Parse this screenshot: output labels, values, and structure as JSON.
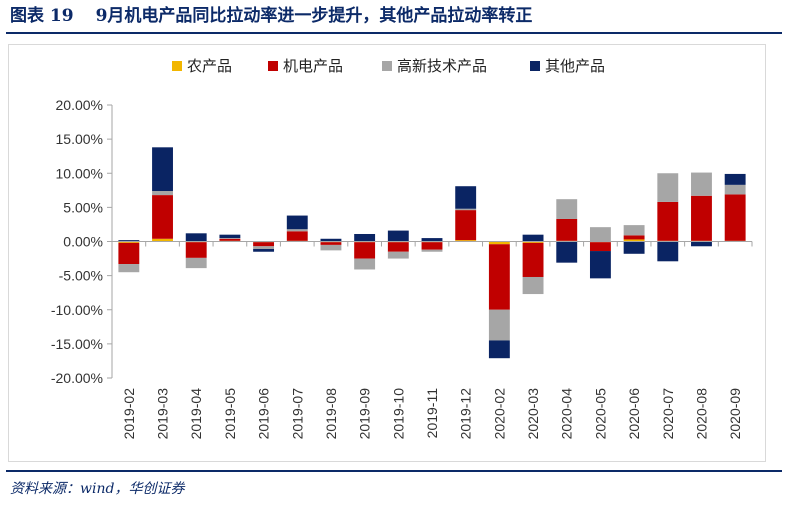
{
  "figure": {
    "label": "图表 19",
    "title": "9月机电产品同比拉动率进一步提升，其他产品拉动率转正",
    "source": "资料来源：wind，华创证券"
  },
  "colors": {
    "title": "#0c2a68",
    "rule": "#0c2a68",
    "agri": "#f2b600",
    "mech": "#c00000",
    "hightech": "#a6a6a6",
    "other": "#0a2463"
  },
  "chart_data": {
    "type": "bar",
    "stacked": true,
    "categories": [
      "2019-02",
      "2019-03",
      "2019-04",
      "2019-05",
      "2019-06",
      "2019-07",
      "2019-08",
      "2019-09",
      "2019-10",
      "2019-11",
      "2019-12",
      "2020-02",
      "2020-03",
      "2020-04",
      "2020-05",
      "2020-06",
      "2020-07",
      "2020-08",
      "2020-09"
    ],
    "series": [
      {
        "name": "农产品",
        "color_key": "agri",
        "values": [
          -0.2,
          0.4,
          -0.1,
          0.1,
          -0.1,
          0.1,
          -0.1,
          -0.1,
          -0.1,
          -0.1,
          0.2,
          -0.4,
          -0.2,
          0.1,
          -0.1,
          0.3,
          0.1,
          0.1,
          0.1
        ]
      },
      {
        "name": "机电产品",
        "color_key": "mech",
        "values": [
          -3.1,
          6.4,
          -2.3,
          0.3,
          -0.6,
          1.4,
          -0.4,
          -2.4,
          -1.4,
          -1.1,
          4.4,
          -9.6,
          -5.0,
          3.2,
          -1.3,
          0.6,
          5.7,
          6.6,
          6.8
        ]
      },
      {
        "name": "高新技术产品",
        "color_key": "hightech",
        "values": [
          -1.2,
          0.6,
          -1.5,
          0.1,
          -0.4,
          0.3,
          -0.8,
          -1.6,
          -1.0,
          -0.3,
          0.2,
          -4.5,
          -2.5,
          2.9,
          2.1,
          1.5,
          4.2,
          3.4,
          1.4
        ]
      },
      {
        "name": "其他产品",
        "color_key": "other",
        "values": [
          0.2,
          6.4,
          1.2,
          0.5,
          -0.4,
          2.0,
          0.4,
          1.1,
          1.6,
          0.5,
          3.3,
          -2.6,
          1.0,
          -3.1,
          -4.0,
          -1.8,
          -2.9,
          -0.7,
          1.6
        ]
      }
    ],
    "ylim": [
      -20,
      20
    ],
    "yticks": [
      20,
      15,
      10,
      5,
      0,
      -5,
      -10,
      -15,
      -20
    ],
    "ytick_labels": [
      "20.00%",
      "15.00%",
      "10.00%",
      "5.00%",
      "0.00%",
      "-5.00%",
      "-10.00%",
      "-15.00%",
      "-20.00%"
    ],
    "legend_position": "top-center",
    "grid": false,
    "xlabel": "",
    "ylabel": ""
  }
}
